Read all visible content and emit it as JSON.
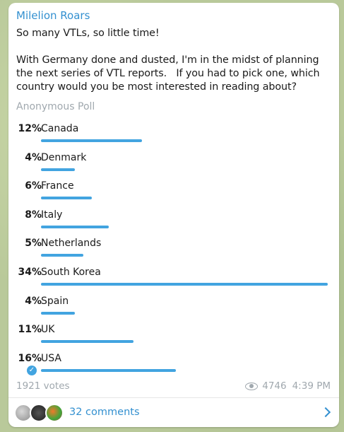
{
  "message": {
    "sender": "Milelion Roars",
    "text_line1": "So many VTLs, so little time!",
    "text_body": "With Germany done and dusted, I'm in the midst of planning the next series of VTL reports.   If you had to pick one, which country would you be most interested in reading about?"
  },
  "poll": {
    "type": "Anonymous Poll",
    "options": [
      {
        "percent_label": "12%",
        "label": "Canada",
        "percent": 12,
        "voted": false
      },
      {
        "percent_label": "4%",
        "label": "Denmark",
        "percent": 4,
        "voted": false
      },
      {
        "percent_label": "6%",
        "label": "France",
        "percent": 6,
        "voted": false
      },
      {
        "percent_label": "8%",
        "label": "Italy",
        "percent": 8,
        "voted": false
      },
      {
        "percent_label": "5%",
        "label": "Netherlands",
        "percent": 5,
        "voted": false
      },
      {
        "percent_label": "34%",
        "label": "South Korea",
        "percent": 34,
        "voted": false
      },
      {
        "percent_label": "4%",
        "label": "Spain",
        "percent": 4,
        "voted": false
      },
      {
        "percent_label": "11%",
        "label": "UK",
        "percent": 11,
        "voted": false
      },
      {
        "percent_label": "16%",
        "label": "USA",
        "percent": 16,
        "voted": true
      }
    ],
    "votes": "1921 votes",
    "views": "4746",
    "time": "4:39 PM"
  },
  "comments": {
    "label": "32 comments"
  },
  "colors": {
    "accent": "#3390d0",
    "bar": "#42a4e0",
    "muted": "#a0a8ae"
  },
  "icons": {
    "views": "eye-icon",
    "voted": "check-circle-icon",
    "open_comments": "chevron-right-icon"
  }
}
